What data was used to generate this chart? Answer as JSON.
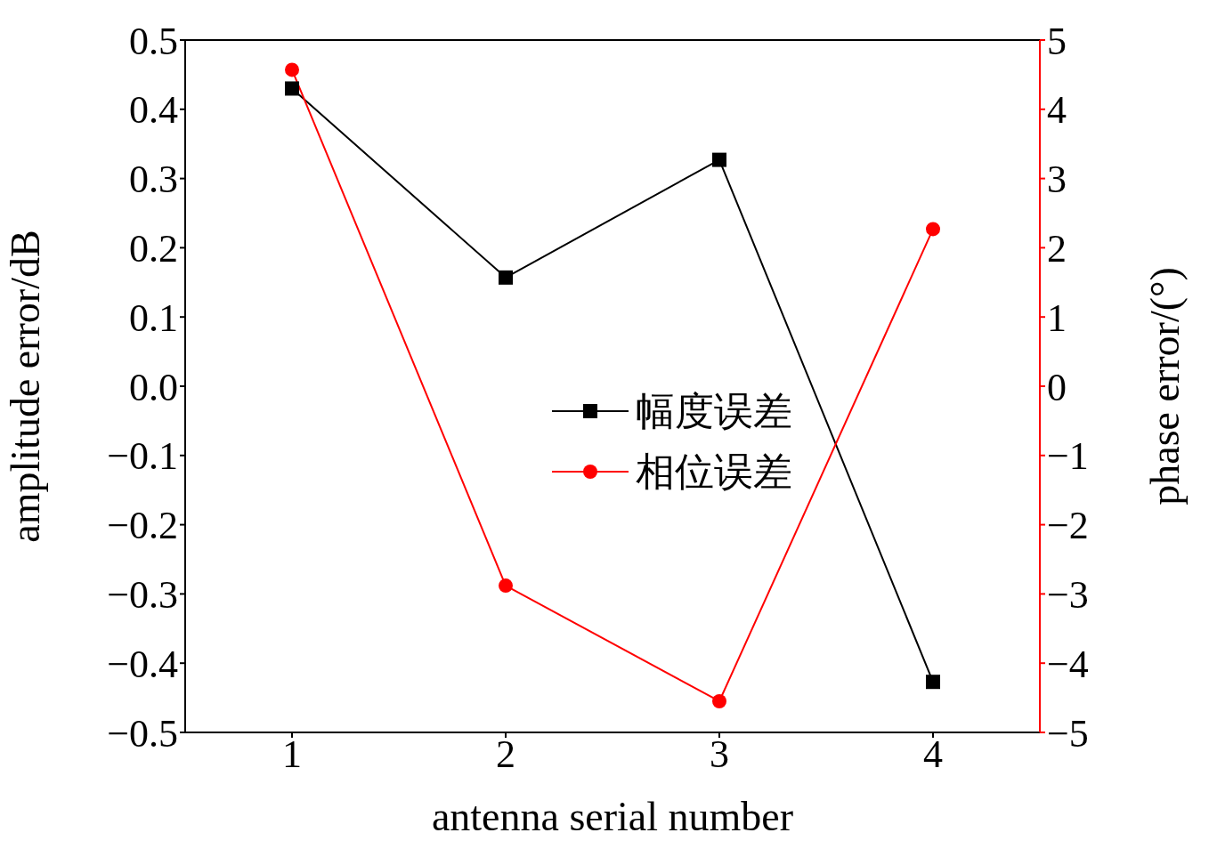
{
  "chart_data": {
    "type": "line",
    "xlabel": "antenna serial number",
    "ylabel": "amplitude error/dB",
    "y2label": "phase error/(°)",
    "x": [
      1,
      2,
      3,
      4
    ],
    "xlim": [
      0.5,
      4.5
    ],
    "xticks": [
      1,
      2,
      3,
      4
    ],
    "ylim": [
      -0.5,
      0.5
    ],
    "yticks": [
      {
        "value": -0.5,
        "label": "−0.5"
      },
      {
        "value": -0.4,
        "label": "−0.4"
      },
      {
        "value": -0.3,
        "label": "−0.3"
      },
      {
        "value": -0.2,
        "label": "−0.2"
      },
      {
        "value": -0.1,
        "label": "−0.1"
      },
      {
        "value": 0,
        "label": "0.0"
      },
      0.1,
      0.2,
      0.3,
      0.4,
      0.5
    ],
    "y2lim": [
      -5,
      5
    ],
    "y2ticks": [
      {
        "value": -5,
        "label": "−5"
      },
      {
        "value": -4,
        "label": "−4"
      },
      {
        "value": -3,
        "label": "−3"
      },
      {
        "value": -2,
        "label": "−2"
      },
      {
        "value": -1,
        "label": "−1"
      },
      0,
      1,
      2,
      3,
      4,
      5
    ],
    "series": [
      {
        "name": "幅度误差",
        "color": "#000000",
        "marker": "square",
        "values": [
          0.43,
          0.157,
          0.327,
          -0.427
        ]
      },
      {
        "name": "相位误差",
        "color": "#ff0000",
        "marker": "circle",
        "axis": "y2",
        "values": [
          4.57,
          -2.88,
          -4.55,
          2.27
        ]
      }
    ],
    "legend": "right",
    "grid": false,
    "line_style": "solid"
  }
}
